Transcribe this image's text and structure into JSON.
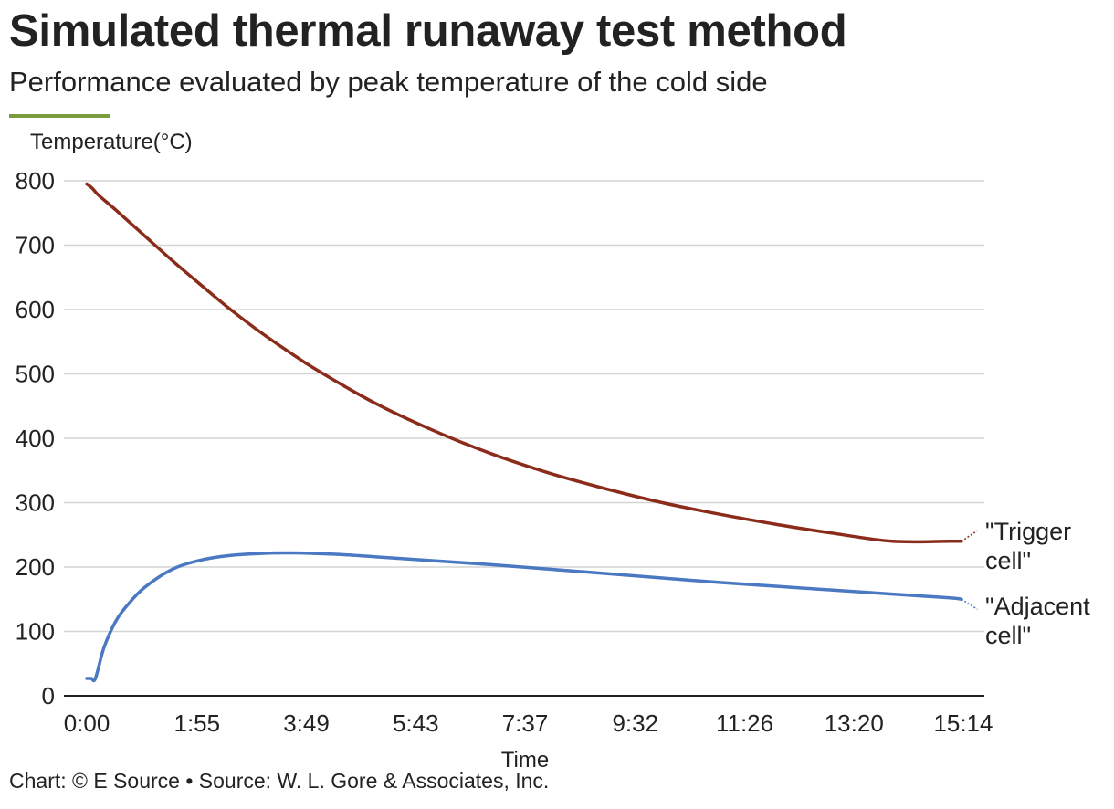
{
  "header": {
    "title": "Simulated thermal runaway test method",
    "subtitle": "Performance evaluated by peak temperature of the cold side"
  },
  "footer": {
    "credit": "Chart: © E Source • Source: W. L. Gore & Associates, Inc."
  },
  "colors": {
    "accent": "#7a9c3c",
    "grid": "#d4d4d4",
    "axis": "#222222"
  },
  "chart_data": {
    "type": "line",
    "title": "Simulated thermal runaway test method",
    "subtitle": "Performance evaluated by peak temperature of the cold side",
    "xlabel": "Time",
    "ylabel": "Temperature(°C)",
    "x_unit": "minutes",
    "xlim": [
      0,
      15.4
    ],
    "ylim": [
      0,
      800
    ],
    "yticks": [
      0,
      100,
      200,
      300,
      400,
      500,
      600,
      700,
      800
    ],
    "xtick_labels": [
      "0:00",
      "1:55",
      "3:49",
      "5:43",
      "7:37",
      "9:32",
      "11:26",
      "13:20",
      "15:14"
    ],
    "xtick_values": [
      0,
      1.9167,
      3.8167,
      5.7167,
      7.6167,
      9.5333,
      11.4333,
      13.3333,
      15.2333
    ],
    "grid": true,
    "series": [
      {
        "name": "\"Trigger cell\"",
        "label_lines": [
          "\"Trigger",
          "cell\""
        ],
        "color": "#8b2b1a",
        "x": [
          0,
          0.1,
          0.2,
          0.5,
          1.0,
          1.5,
          2.0,
          2.5,
          3.0,
          3.5,
          4.0,
          5.0,
          6.0,
          7.0,
          8.0,
          9.0,
          10.0,
          11.0,
          12.0,
          13.0,
          14.0,
          15.0,
          15.2,
          15.35
        ],
        "y": [
          795,
          788,
          778,
          755,
          715,
          675,
          637,
          600,
          566,
          535,
          506,
          455,
          413,
          377,
          347,
          322,
          300,
          282,
          266,
          252,
          240,
          240,
          240,
          248
        ]
      },
      {
        "name": "\"Adjacent cell\"",
        "label_lines": [
          "\"Adjacent",
          "cell\""
        ],
        "color": "#4a78c2",
        "x": [
          0,
          0.08,
          0.15,
          0.3,
          0.5,
          0.7,
          1.0,
          1.5,
          2.0,
          2.5,
          3.0,
          3.5,
          4.0,
          4.5,
          5.0,
          6.0,
          7.0,
          8.0,
          9.0,
          10.0,
          11.0,
          12.0,
          13.0,
          14.0,
          15.0,
          15.2,
          15.35
        ],
        "y": [
          27,
          27,
          27,
          75,
          115,
          140,
          168,
          197,
          211,
          218,
          221,
          222,
          221,
          219,
          216,
          210,
          204,
          197,
          190,
          183,
          176,
          170,
          164,
          158,
          152,
          150,
          140
        ]
      }
    ]
  }
}
